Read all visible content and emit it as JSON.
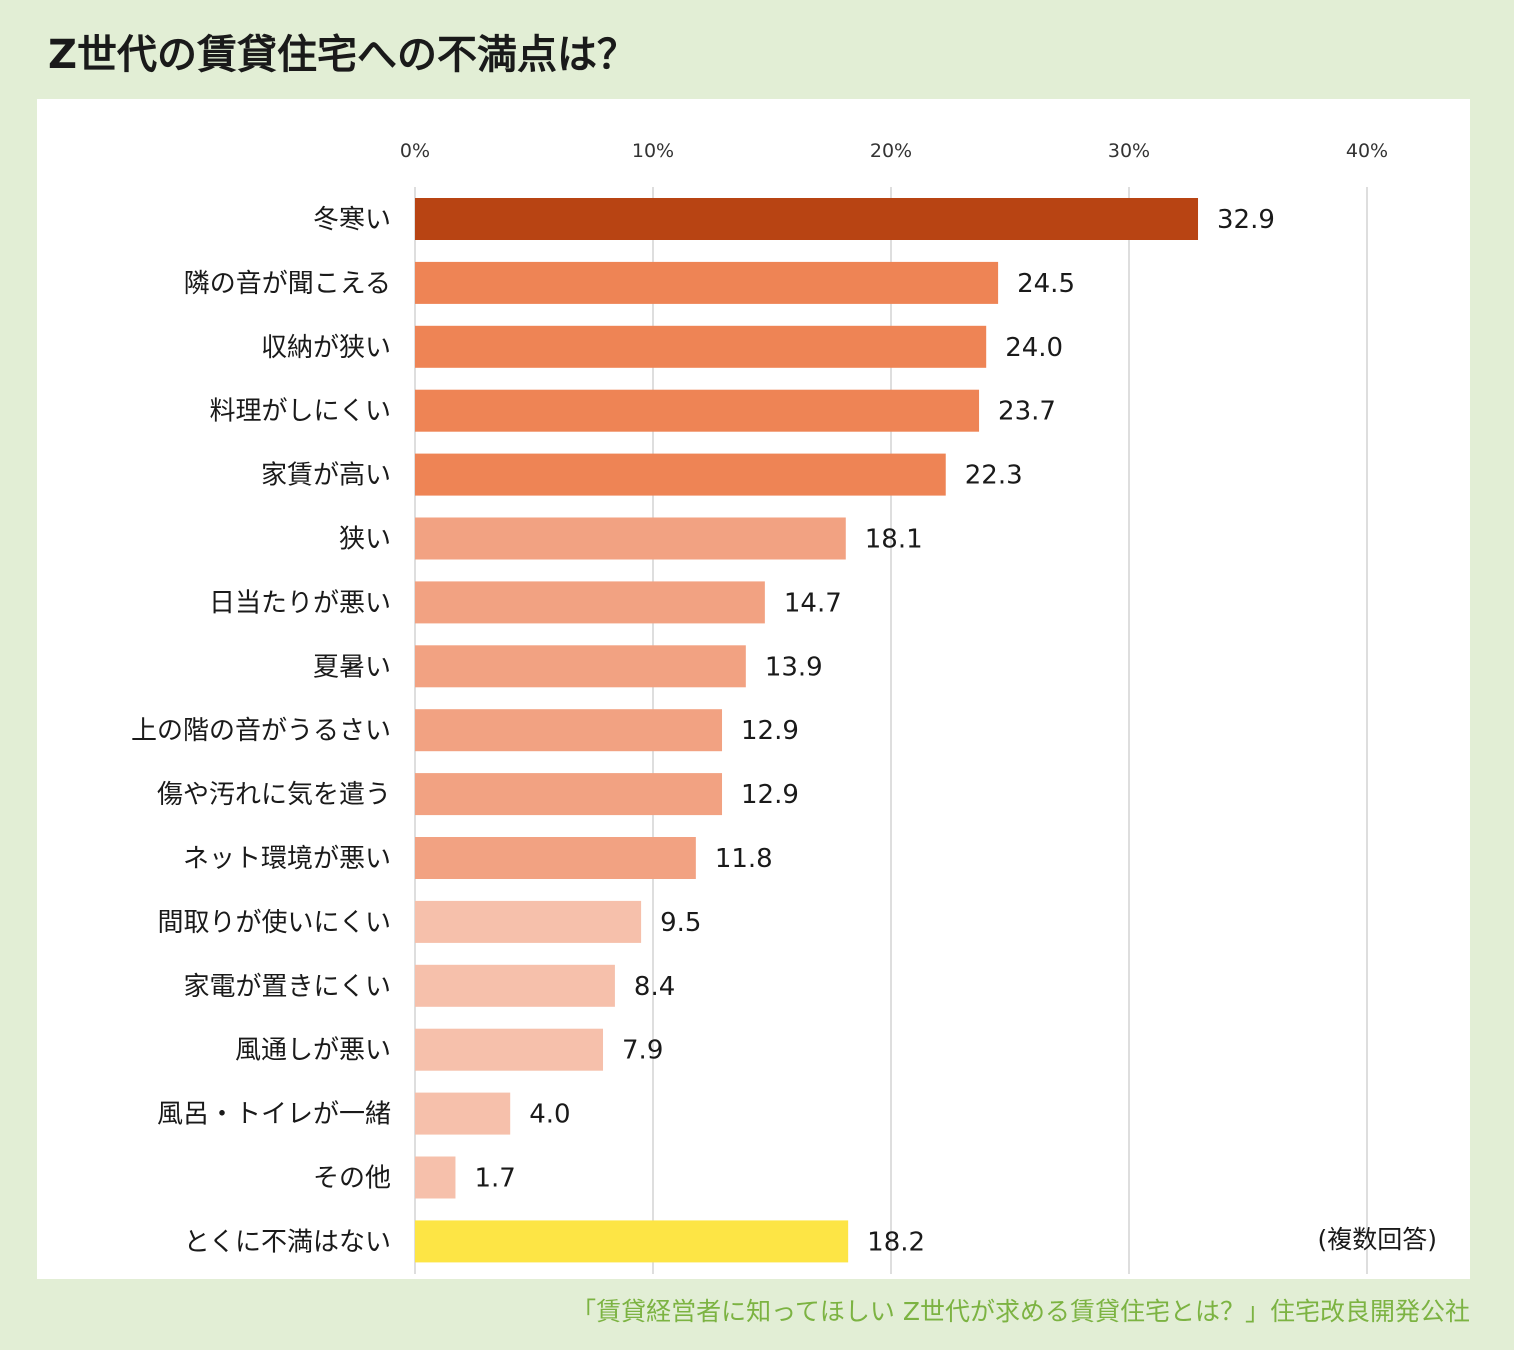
{
  "title": "Z世代の賃貸住宅への不満点は？",
  "source": "「賃貸経営者に知ってほしい Z世代が求める賃貸住宅とは？」住宅改良開発公社",
  "chart_data": {
    "type": "bar",
    "orientation": "horizontal",
    "title": "Z世代の賃貸住宅への不満点は？",
    "xlabel": "",
    "ylabel": "",
    "xlim": [
      0,
      40
    ],
    "ticks": [
      0,
      10,
      20,
      30,
      40
    ],
    "tick_labels": [
      "0%",
      "10%",
      "20%",
      "30%",
      "40%"
    ],
    "grid": true,
    "note": "(複数回答)",
    "categories": [
      "冬寒い",
      "隣の音が聞こえる",
      "収納が狭い",
      "料理がしにくい",
      "家賃が高い",
      "狭い",
      "日当たりが悪い",
      "夏暑い",
      "上の階の音がうるさい",
      "傷や汚れに気を遣う",
      "ネット環境が悪い",
      "間取りが使いにくい",
      "家電が置きにくい",
      "風通しが悪い",
      "風呂・トイレが一緒",
      "その他",
      "とくに不満はない"
    ],
    "values": [
      32.9,
      24.5,
      24.0,
      23.7,
      22.3,
      18.1,
      14.7,
      13.9,
      12.9,
      12.9,
      11.8,
      9.5,
      8.4,
      7.9,
      4.0,
      1.7,
      18.2
    ],
    "value_labels": [
      "32.9",
      "24.5",
      "24.0",
      "23.7",
      "22.3",
      "18.1",
      "14.7",
      "13.9",
      "12.9",
      "12.9",
      "11.8",
      "9.5",
      "8.4",
      "7.9",
      "4.0",
      "1.7",
      "18.2"
    ],
    "colors": [
      "#b84413",
      "#ee8455",
      "#ee8455",
      "#ee8455",
      "#ee8455",
      "#f2a282",
      "#f2a282",
      "#f2a282",
      "#f2a282",
      "#f2a282",
      "#f2a282",
      "#f6c0ab",
      "#f6c0ab",
      "#f6c0ab",
      "#f6c0ab",
      "#f6c0ab",
      "#fde545"
    ]
  }
}
